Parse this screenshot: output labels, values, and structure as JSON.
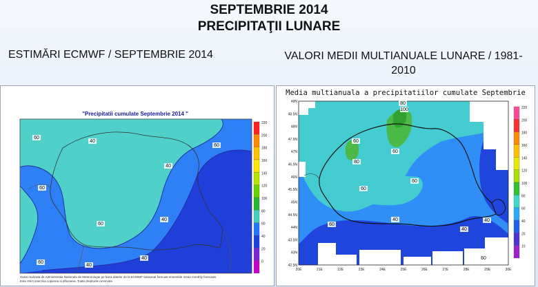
{
  "header": {
    "title_line1": "SEPTEMBRIE 2014",
    "title_line2": "PRECIPITAŢII LUNARE"
  },
  "left_panel": {
    "heading": "ESTIMĂRI ECMWF / SEPTEMBRIE 2014",
    "map_title": "\"Precipitatii cumulate Septembrie 2014 \"",
    "credit_line1": "Harta realizata de Administratia Nationala de Meteorologie pe baza datelor de la ECMWF-seasonal forecast ensemble mean monthly forecasts",
    "credit_line2": "Este strict interzisa copierea si difuzarea. Toate drepturile rezervate",
    "contour_labels": [
      "60",
      "40",
      "40",
      "60",
      "60",
      "60",
      "40",
      "40",
      "60",
      "40"
    ],
    "legend": {
      "ticks": [
        "220",
        "200",
        "180",
        "160",
        "140",
        "120",
        "100",
        "80",
        "60",
        "40",
        "20",
        "0"
      ],
      "colors": [
        "#ff2020",
        "#ff8a00",
        "#ffc400",
        "#ffe600",
        "#b8e600",
        "#66d400",
        "#22b830",
        "#44d0c0",
        "#1f78ff",
        "#1a40e0",
        "#7a26d8",
        "#c800c8"
      ]
    }
  },
  "right_panel": {
    "heading": "VALORI MEDII MULTIANUALE LUNARE / 1981-2010",
    "map_title": "Media multianuala a precipitatiilor cumulate Septembrie",
    "contour_labels": [
      "80",
      "100",
      "60",
      "60",
      "80",
      "60",
      "60",
      "40",
      "40",
      "60",
      "40",
      "60"
    ],
    "lat_ticks": [
      "49N",
      "48.5N",
      "48N",
      "47.5N",
      "47N",
      "46.5N",
      "46N",
      "45.5N",
      "45N",
      "44.5N",
      "44N",
      "43.5N",
      "43N",
      "42.5N"
    ],
    "lon_ticks": [
      "20E",
      "21E",
      "22E",
      "23E",
      "24E",
      "25E",
      "26E",
      "27E",
      "28E",
      "29E",
      "30E"
    ],
    "legend": {
      "ticks": [
        "220",
        "200",
        "180",
        "160",
        "140",
        "120",
        "100",
        "80",
        "60",
        "40",
        "20",
        "10"
      ],
      "colors": [
        "#ff4a9a",
        "#ff3030",
        "#ff8a00",
        "#ffc000",
        "#e8e800",
        "#a8e000",
        "#30c030",
        "#40d8c8",
        "#28a8ff",
        "#1f60f0",
        "#5030d8",
        "#a020d0"
      ]
    }
  }
}
